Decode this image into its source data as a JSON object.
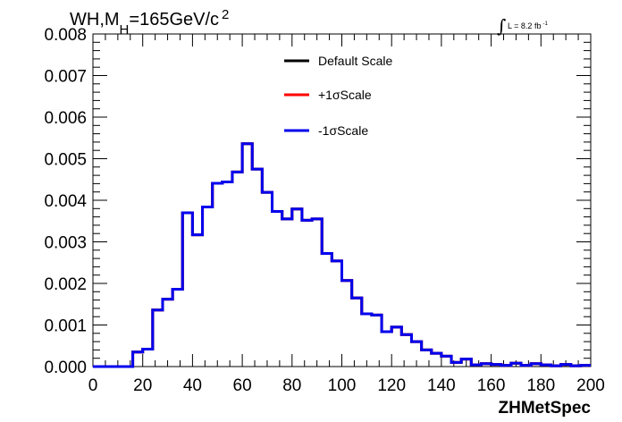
{
  "chart_data": {
    "type": "line",
    "title_main": "WH,M",
    "title_sub": "H",
    "title_rest": "=165GeV/c",
    "title_sup": "2",
    "lumi_main": "L = 8.2 fb",
    "lumi_sup": "-1",
    "xlabel": "ZHMetSpec",
    "xlim": [
      0,
      200
    ],
    "ylim": [
      0,
      0.008
    ],
    "xticks": [
      "0",
      "20",
      "40",
      "60",
      "80",
      "100",
      "120",
      "140",
      "160",
      "180",
      "200"
    ],
    "yticks": [
      "0.000",
      "0.001",
      "0.002",
      "0.003",
      "0.004",
      "0.005",
      "0.006",
      "0.007",
      "0.008"
    ],
    "bin_edges": [
      0,
      4,
      8,
      12,
      16,
      20,
      24,
      28,
      32,
      36,
      40,
      44,
      48,
      52,
      56,
      60,
      64,
      68,
      72,
      76,
      80,
      84,
      88,
      92,
      96,
      100,
      104,
      108,
      112,
      116,
      120,
      124,
      128,
      132,
      136,
      140,
      144,
      148,
      152,
      156,
      160,
      164,
      168,
      172,
      176,
      180,
      184,
      188,
      192,
      196,
      200
    ],
    "series": [
      {
        "name": "Default Scale",
        "color": "#000000",
        "values": [
          0,
          0,
          0,
          0,
          0.00035,
          0.00042,
          0.00136,
          0.00162,
          0.00186,
          0.0037,
          0.00317,
          0.00384,
          0.00441,
          0.00444,
          0.00468,
          0.00536,
          0.00475,
          0.00419,
          0.00373,
          0.00355,
          0.00379,
          0.00352,
          0.00355,
          0.00272,
          0.00254,
          0.00207,
          0.00165,
          0.00127,
          0.00124,
          0.00084,
          0.00095,
          0.00077,
          0.0006,
          0.0004,
          0.00032,
          0.00025,
          0.0001,
          0.00018,
          4e-05,
          7e-05,
          5e-05,
          3e-05,
          8e-05,
          3e-05,
          7e-05,
          4e-05,
          2e-05,
          5e-05,
          2e-05,
          3e-05
        ]
      },
      {
        "name": "+1σScale",
        "color": "#ff0000",
        "values": [
          0,
          0,
          0,
          0,
          0.00035,
          0.00042,
          0.00136,
          0.00162,
          0.00186,
          0.0037,
          0.00317,
          0.00384,
          0.00441,
          0.00444,
          0.00468,
          0.00536,
          0.00475,
          0.00419,
          0.00373,
          0.00355,
          0.00379,
          0.00352,
          0.00355,
          0.00272,
          0.00254,
          0.00207,
          0.00165,
          0.00127,
          0.00124,
          0.00084,
          0.00095,
          0.00077,
          0.0006,
          0.0004,
          0.00032,
          0.00025,
          0.0001,
          0.00018,
          4e-05,
          7e-05,
          5e-05,
          3e-05,
          8e-05,
          3e-05,
          7e-05,
          4e-05,
          2e-05,
          5e-05,
          2e-05,
          3e-05
        ]
      },
      {
        "name": "-1σScale",
        "color": "#0000ee",
        "values": [
          0,
          0,
          0,
          0,
          0.00035,
          0.00042,
          0.00136,
          0.00162,
          0.00186,
          0.0037,
          0.00317,
          0.00384,
          0.00441,
          0.00444,
          0.00468,
          0.00536,
          0.00475,
          0.00419,
          0.00373,
          0.00355,
          0.00379,
          0.00352,
          0.00355,
          0.00272,
          0.00254,
          0.00207,
          0.00165,
          0.00127,
          0.00124,
          0.00084,
          0.00095,
          0.00077,
          0.0006,
          0.0004,
          0.00032,
          0.00025,
          0.0001,
          0.00018,
          4e-05,
          7e-05,
          5e-05,
          3e-05,
          8e-05,
          3e-05,
          7e-05,
          4e-05,
          2e-05,
          5e-05,
          2e-05,
          3e-05
        ]
      }
    ],
    "legend_position": "top-center",
    "grid": false
  }
}
